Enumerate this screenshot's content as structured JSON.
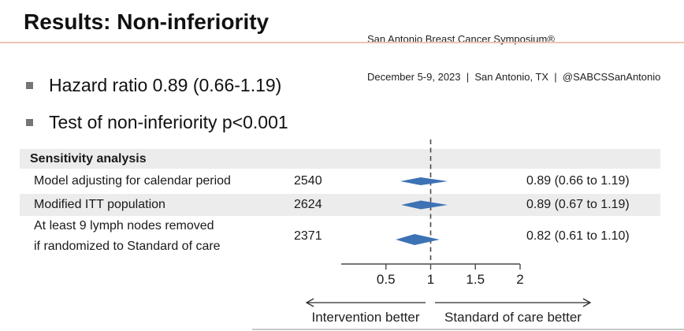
{
  "header": {
    "title": "Results: Non-inferiority",
    "conference_line1": "San Antonio Breast Cancer Symposium®",
    "conference_line2": "December 5-9, 2023  |  San Antonio, TX  |  @SABCSSanAntonio"
  },
  "bullets": [
    "Hazard ratio 0.89 (0.66-1.19)",
    "Test of non-inferiority p<0.001"
  ],
  "table": {
    "header": "Sensitivity analysis",
    "rows": [
      {
        "label": "Model adjusting for calendar period",
        "label2": "",
        "n": "2540",
        "value": "0.89 (0.66 to 1.19)"
      },
      {
        "label": "Modified ITT population",
        "label2": "",
        "n": "2624",
        "value": "0.89 (0.67 to 1.19)"
      },
      {
        "label": "At least 9 lymph nodes removed",
        "label2": "if randomized to Standard of care",
        "n": "2371",
        "value": "0.82 (0.61 to 1.10)"
      }
    ]
  },
  "chart_data": {
    "type": "forest",
    "title": "Sensitivity analysis",
    "rows": [
      {
        "label": "Model adjusting for calendar period",
        "n": 2540,
        "hr": 0.89,
        "ci_low": 0.66,
        "ci_high": 1.19
      },
      {
        "label": "Modified ITT population",
        "n": 2624,
        "hr": 0.89,
        "ci_low": 0.67,
        "ci_high": 1.19
      },
      {
        "label": "At least 9 lymph nodes removed if randomized to Standard of care",
        "n": 2371,
        "hr": 0.82,
        "ci_low": 0.61,
        "ci_high": 1.1
      }
    ],
    "axis": {
      "min": 0,
      "max": 2,
      "ticks": [
        0.5,
        1,
        1.5,
        2
      ],
      "tick_labels": [
        "0.5",
        "1",
        "1.5",
        "2"
      ],
      "reference_line": 1
    },
    "left_label": "Intervention better",
    "right_label": "Standard of care better",
    "diamond_color": "#3d72b5",
    "axis_color": "#4a4a4a"
  },
  "colors": {
    "accent_rule": "#d87b5c",
    "band": "#ececec",
    "diamond": "#3d72b5"
  }
}
